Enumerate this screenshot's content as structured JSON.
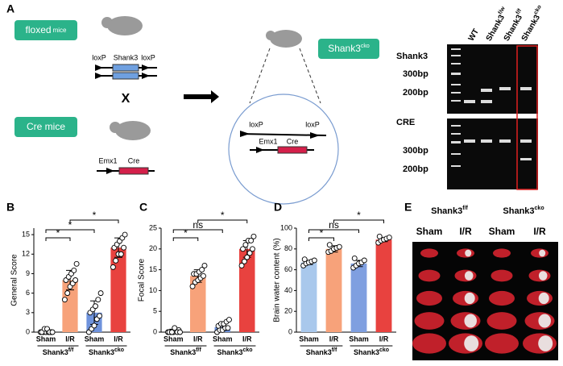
{
  "panel_labels": [
    "A",
    "B",
    "C",
    "D",
    "E"
  ],
  "panel_a": {
    "floxed": {
      "main": "floxed",
      "small": "mice"
    },
    "gene_left": "loxP",
    "gene_name": "Shank3",
    "gene_right": "loxP",
    "cross": "X",
    "cre_mice": "Cre mice",
    "emx1": "Emx1",
    "cre": "Cre",
    "circle": {
      "loxp_left": "loxP",
      "loxp_right": "loxP",
      "emx1": "Emx1",
      "cre": "Cre"
    },
    "result": {
      "base": "Shank3",
      "sup": "cko"
    },
    "lanes": [
      {
        "base": "WT",
        "sup": ""
      },
      {
        "base": "Shank3",
        "sup": "f/w"
      },
      {
        "base": "Shank3",
        "sup": "f/f"
      },
      {
        "base": "Shank3",
        "sup": "cko"
      }
    ],
    "gel_top": {
      "title": "Shank3",
      "marks": [
        "300bp",
        "200bp"
      ]
    },
    "gel_bottom": {
      "title": "CRE",
      "marks": [
        "300bp",
        "200bp"
      ]
    }
  },
  "chart_data": [
    {
      "type": "bar",
      "y_label": "General Score",
      "categories": [
        "Sham",
        "I/R",
        "Sham",
        "I/R"
      ],
      "groups": [
        {
          "base": "Shank3",
          "sup": "f/f"
        },
        {
          "base": "Shank3",
          "sup": "cko"
        }
      ],
      "values": [
        0.3,
        8,
        3,
        13
      ],
      "errors": [
        0.3,
        1.5,
        1.8,
        1.5
      ],
      "colors": [
        "#a9c8ec",
        "#f7a27a",
        "#6f93dc",
        "#e8423f"
      ],
      "points": [
        [
          0,
          0,
          0,
          0,
          0,
          0,
          0.5,
          0.5,
          0,
          0
        ],
        [
          5,
          6,
          7,
          7.5,
          8,
          8,
          8.5,
          9,
          9.5,
          10.5
        ],
        [
          0,
          0.5,
          1,
          2,
          2.5,
          3,
          3.5,
          4,
          5,
          6
        ],
        [
          10,
          11,
          12,
          12,
          13,
          13,
          13.5,
          14,
          14.5,
          15
        ]
      ],
      "ylim": [
        0,
        16
      ],
      "yticks": [
        0,
        3,
        6,
        9,
        12,
        15
      ],
      "significance": [
        "*",
        "*",
        "*"
      ]
    },
    {
      "type": "bar",
      "y_label": "Focal Score",
      "categories": [
        "Sham",
        "I/R",
        "Sham",
        "I/R"
      ],
      "groups": [
        {
          "base": "Shank3",
          "sup": "f/f"
        },
        {
          "base": "Shank3",
          "sup": "cko"
        }
      ],
      "values": [
        0.3,
        13.5,
        1.2,
        20
      ],
      "errors": [
        0.4,
        1.5,
        0.8,
        2
      ],
      "colors": [
        "#a9c8ec",
        "#f7a27a",
        "#6f93dc",
        "#e8423f"
      ],
      "points": [
        [
          0,
          0,
          0,
          0.5,
          0.5,
          0,
          0,
          1,
          0,
          0
        ],
        [
          11,
          12,
          12.5,
          13,
          13.5,
          14,
          14,
          14.5,
          15,
          16
        ],
        [
          0,
          0.5,
          0.5,
          1,
          1,
          1.5,
          2,
          2,
          2.5,
          3
        ],
        [
          16,
          17,
          18,
          19,
          20,
          20,
          21,
          22,
          22,
          23
        ]
      ],
      "ylim": [
        0,
        25
      ],
      "yticks": [
        0,
        5,
        10,
        15,
        20,
        25
      ],
      "significance": [
        "*",
        "ns",
        "*"
      ]
    },
    {
      "type": "bar",
      "y_label": "Brain water content (%)",
      "categories": [
        "Sham",
        "I/R",
        "Sham",
        "I/R"
      ],
      "groups": [
        {
          "base": "Shank3",
          "sup": "f/f"
        },
        {
          "base": "Shank3",
          "sup": "cko"
        }
      ],
      "values": [
        67,
        80,
        66,
        89
      ],
      "errors": [
        2,
        3,
        3,
        2
      ],
      "colors": [
        "#a9c8ec",
        "#f7a27a",
        "#7f9fe0",
        "#e8423f"
      ],
      "points": [
        [
          64,
          66,
          67,
          68,
          69,
          70
        ],
        [
          77,
          78,
          80,
          81,
          82,
          84
        ],
        [
          62,
          64,
          66,
          67,
          69,
          71
        ],
        [
          86,
          88,
          89,
          90,
          91,
          92
        ]
      ],
      "ylim": [
        0,
        100
      ],
      "yticks": [
        0,
        20,
        40,
        60,
        80,
        100
      ],
      "significance": [
        "*",
        "ns",
        "*"
      ]
    }
  ],
  "panel_e": {
    "groups": [
      {
        "base": "Shank3",
        "sup": "f/f"
      },
      {
        "base": "Shank3",
        "sup": "cko"
      }
    ],
    "columns": [
      "Sham",
      "I/R",
      "Sham",
      "I/R"
    ]
  }
}
